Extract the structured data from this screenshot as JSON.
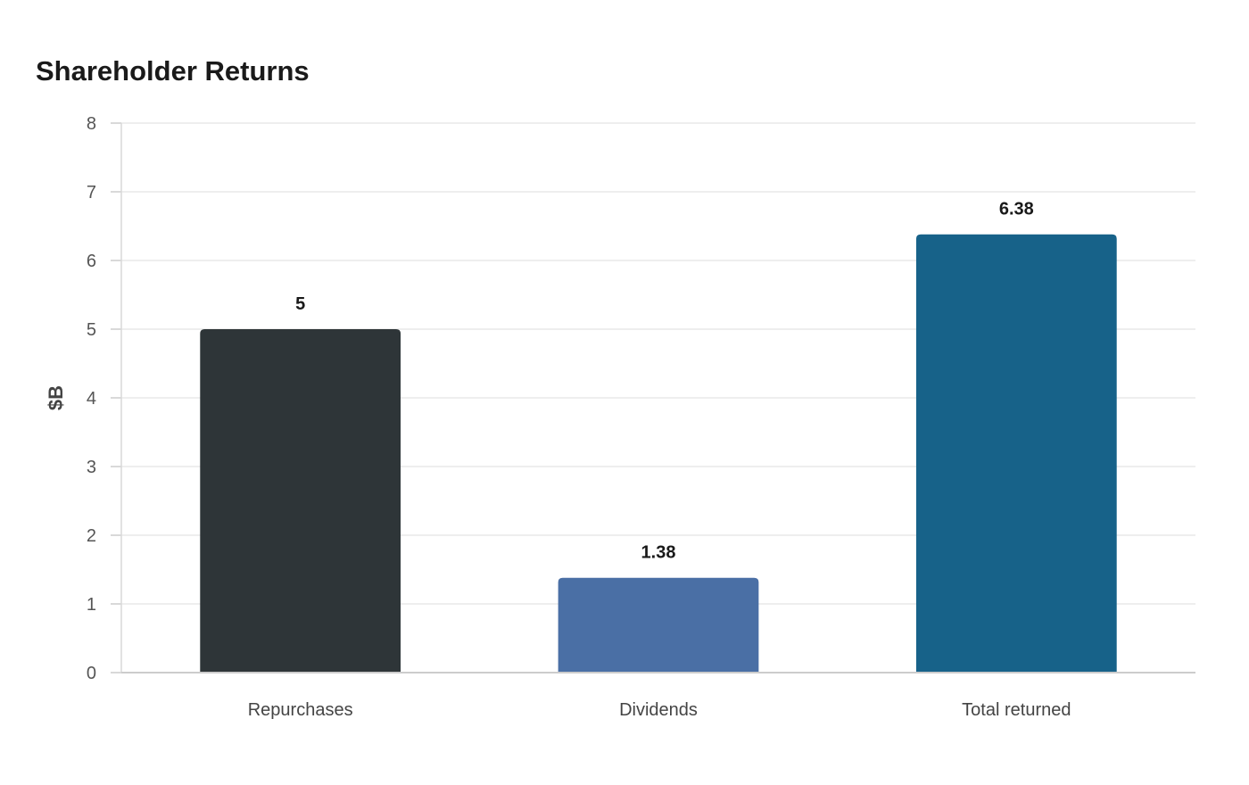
{
  "chart_data": {
    "type": "bar",
    "title": "Shareholder Returns",
    "xlabel": "",
    "ylabel": "$B",
    "ylim": [
      0,
      8
    ],
    "yticks": [
      0,
      1,
      2,
      3,
      4,
      5,
      6,
      7,
      8
    ],
    "grid": true,
    "categories": [
      "Repurchases",
      "Dividends",
      "Total returned"
    ],
    "values": [
      5,
      1.38,
      6.38
    ],
    "data_labels": [
      "5",
      "1.38",
      "6.38"
    ],
    "colors": [
      "#2e3538",
      "#4a6fa5",
      "#176289"
    ]
  }
}
